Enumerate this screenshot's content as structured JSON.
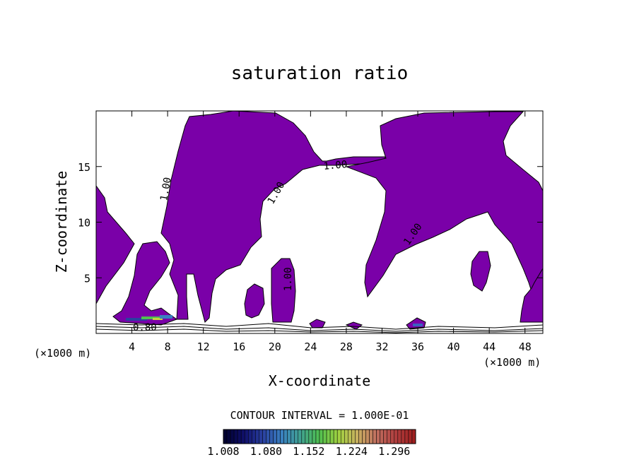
{
  "chart_data": {
    "type": "heatmap",
    "title": "saturation ratio",
    "xlabel": "X-coordinate",
    "ylabel": "Z-coordinate",
    "x_unit": "(×1000 m)",
    "x_unit_right": "(×1000 m)",
    "xlim": [
      0,
      50
    ],
    "ylim": [
      0,
      20
    ],
    "x_ticks": [
      4,
      8,
      12,
      16,
      20,
      24,
      28,
      32,
      36,
      40,
      44,
      48
    ],
    "y_ticks": [
      5,
      10,
      15
    ],
    "fill_color": "#7a00a8",
    "contour_interval_text": "CONTOUR INTERVAL = 1.000E-01",
    "contour_labels": [
      "1.00",
      "1.00",
      "1.00",
      "1.00",
      "1.00",
      "0.80"
    ],
    "colorbar": {
      "ticks": [
        "1.008",
        "1.080",
        "1.152",
        "1.224",
        "1.296"
      ],
      "min": 1.008,
      "max": 1.332,
      "colors": [
        "#000030",
        "#10106a",
        "#2a40a0",
        "#3a80c0",
        "#40a090",
        "#50c050",
        "#a0d040",
        "#c8b060",
        "#c07060",
        "#b04040",
        "#a02020"
      ]
    }
  }
}
